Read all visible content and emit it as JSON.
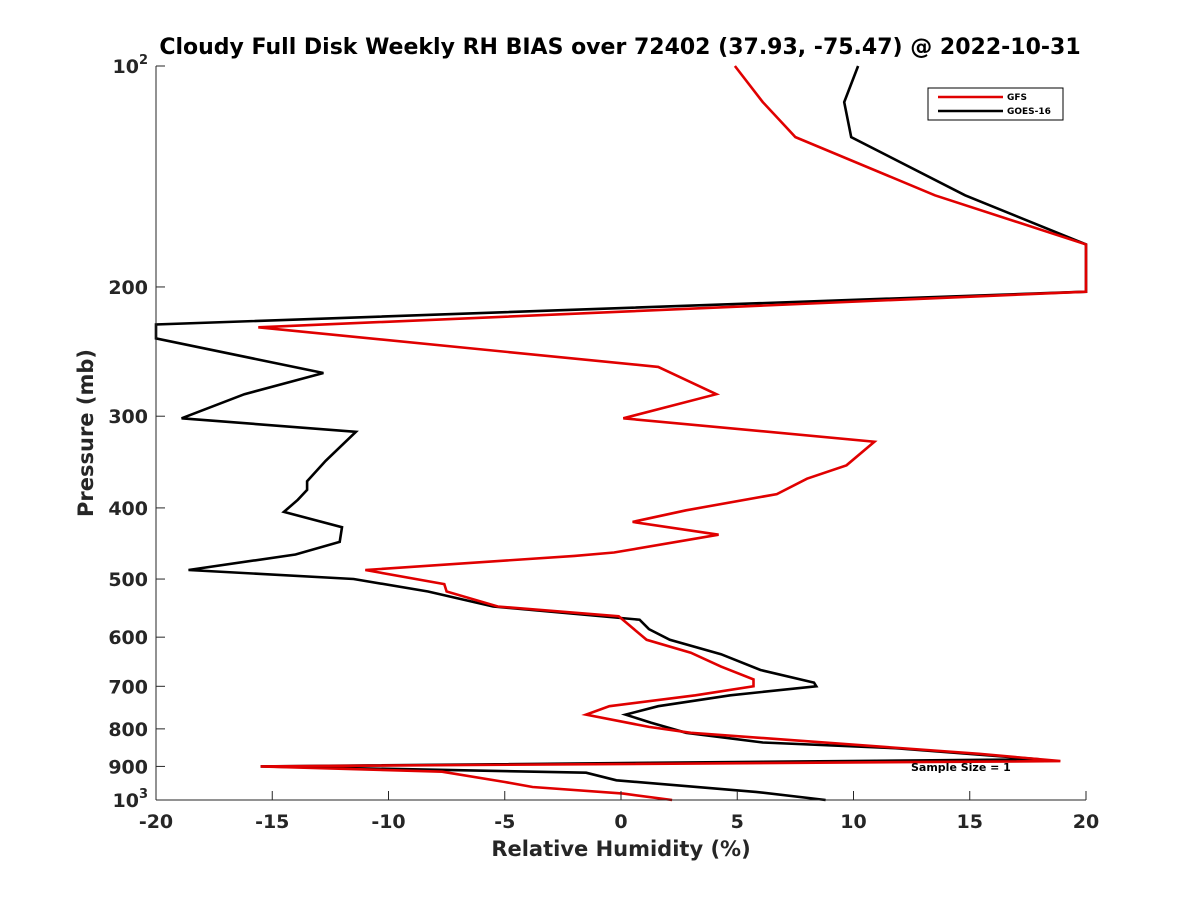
{
  "chart_data": {
    "type": "line",
    "title": "Cloudy Full Disk Weekly RH BIAS over 72402 (37.93, -75.47) @ 2022-10-31",
    "xlabel": "Relative Humidity (%)",
    "ylabel": "Pressure (mb)",
    "xlim": [
      -20,
      20
    ],
    "ylim": [
      100,
      1000
    ],
    "yscale": "log",
    "y_reversed": true,
    "grid": false,
    "legend_position": "top-right",
    "x_ticks": [
      -20,
      -15,
      -10,
      -5,
      0,
      5,
      10,
      15,
      20
    ],
    "x_tick_labels": [
      "-20",
      "-15",
      "-10",
      "-5",
      "0",
      "5",
      "10",
      "15",
      "20"
    ],
    "y_tick_labels": [
      {
        "value": 100,
        "base": "10",
        "exp": "2"
      },
      {
        "value": 200,
        "base": "200",
        "exp": ""
      },
      {
        "value": 300,
        "base": "300",
        "exp": ""
      },
      {
        "value": 400,
        "base": "400",
        "exp": ""
      },
      {
        "value": 500,
        "base": "500",
        "exp": ""
      },
      {
        "value": 600,
        "base": "600",
        "exp": ""
      },
      {
        "value": 700,
        "base": "700",
        "exp": ""
      },
      {
        "value": 800,
        "base": "800",
        "exp": ""
      },
      {
        "value": 900,
        "base": "900",
        "exp": ""
      },
      {
        "value": 1000,
        "base": "10",
        "exp": "3"
      }
    ],
    "series": [
      {
        "name": "GFS",
        "color": "#e00000",
        "points": [
          [
            4.9,
            100
          ],
          [
            6.1,
            112
          ],
          [
            7.5,
            125
          ],
          [
            13.5,
            150
          ],
          [
            20.0,
            175
          ],
          [
            20.0,
            203
          ],
          [
            -15.6,
            227
          ],
          [
            1.6,
            257
          ],
          [
            4.1,
            280
          ],
          [
            0.1,
            302
          ],
          [
            10.9,
            325
          ],
          [
            9.7,
            350
          ],
          [
            8.0,
            365
          ],
          [
            6.7,
            383
          ],
          [
            2.8,
            403
          ],
          [
            0.5,
            418
          ],
          [
            4.2,
            435
          ],
          [
            -0.3,
            460
          ],
          [
            -2.0,
            465
          ],
          [
            -11.0,
            486
          ],
          [
            -7.6,
            508
          ],
          [
            -7.5,
            520
          ],
          [
            -5.3,
            545
          ],
          [
            -0.1,
            562
          ],
          [
            0.5,
            583
          ],
          [
            1.1,
            605
          ],
          [
            3.0,
            630
          ],
          [
            4.3,
            658
          ],
          [
            5.7,
            685
          ],
          [
            5.7,
            700
          ],
          [
            3.2,
            720
          ],
          [
            -0.5,
            745
          ],
          [
            -1.5,
            765
          ],
          [
            1.2,
            795
          ],
          [
            3.0,
            810
          ],
          [
            15.4,
            865
          ],
          [
            18.9,
            885
          ],
          [
            -15.5,
            900
          ],
          [
            -7.7,
            915
          ],
          [
            -5.0,
            945
          ],
          [
            -3.8,
            960
          ],
          [
            0.1,
            980
          ],
          [
            2.2,
            1000
          ]
        ]
      },
      {
        "name": "GOES-16",
        "color": "#000000",
        "points": [
          [
            10.2,
            100
          ],
          [
            9.6,
            112
          ],
          [
            9.9,
            125
          ],
          [
            14.8,
            150
          ],
          [
            20.0,
            175
          ],
          [
            20.0,
            203
          ],
          [
            -20.0,
            225
          ],
          [
            -20.0,
            235
          ],
          [
            -12.8,
            262
          ],
          [
            -16.2,
            280
          ],
          [
            -18.9,
            302
          ],
          [
            -11.4,
            315
          ],
          [
            -12.7,
            345
          ],
          [
            -13.5,
            368
          ],
          [
            -13.5,
            378
          ],
          [
            -13.9,
            390
          ],
          [
            -14.5,
            405
          ],
          [
            -12.0,
            425
          ],
          [
            -12.1,
            445
          ],
          [
            -14.0,
            463
          ],
          [
            -18.6,
            486
          ],
          [
            -11.5,
            500
          ],
          [
            -8.3,
            520
          ],
          [
            -5.5,
            545
          ],
          [
            0.8,
            568
          ],
          [
            1.2,
            585
          ],
          [
            2.1,
            605
          ],
          [
            4.3,
            633
          ],
          [
            6.0,
            665
          ],
          [
            8.3,
            692
          ],
          [
            8.4,
            700
          ],
          [
            4.7,
            720
          ],
          [
            1.6,
            745
          ],
          [
            0.2,
            765
          ],
          [
            1.3,
            785
          ],
          [
            2.8,
            810
          ],
          [
            6.1,
            835
          ],
          [
            11.8,
            850
          ],
          [
            18.0,
            880
          ],
          [
            -15.5,
            900
          ],
          [
            -1.5,
            918
          ],
          [
            -0.2,
            940
          ],
          [
            5.8,
            975
          ],
          [
            8.8,
            1000
          ]
        ]
      }
    ],
    "annotation": "Sample Size = 1"
  }
}
